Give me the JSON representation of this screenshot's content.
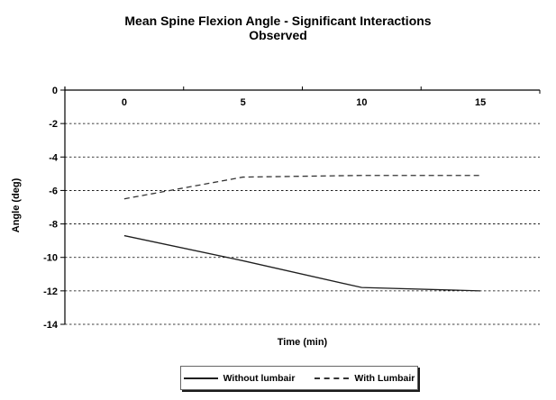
{
  "chart_data": {
    "type": "line",
    "title": "Mean Spine Flexion Angle - Significant Interactions Observed",
    "title_lines": [
      "Mean Spine Flexion Angle - Significant Interactions",
      "Observed"
    ],
    "xlabel": "Time (min)",
    "ylabel": "Angle (deg)",
    "categories": [
      "0",
      "5",
      "10",
      "15"
    ],
    "y_ticks": [
      0,
      -2,
      -4,
      -6,
      -8,
      -10,
      -12,
      -14
    ],
    "ylim": [
      -14,
      0
    ],
    "grid": "horizontal-dashed",
    "legend_position": "bottom-center",
    "axis_color": "#000000",
    "background_color": "#ffffff",
    "series": [
      {
        "name": "Without lumbair",
        "style": "solid",
        "color": "#1f1f1f",
        "values": [
          -8.7,
          -10.2,
          -11.8,
          -12.0
        ]
      },
      {
        "name": "With Lumbair",
        "style": "dashed",
        "color": "#333333",
        "values": [
          -6.5,
          -5.2,
          -5.1,
          -5.1
        ]
      }
    ]
  }
}
